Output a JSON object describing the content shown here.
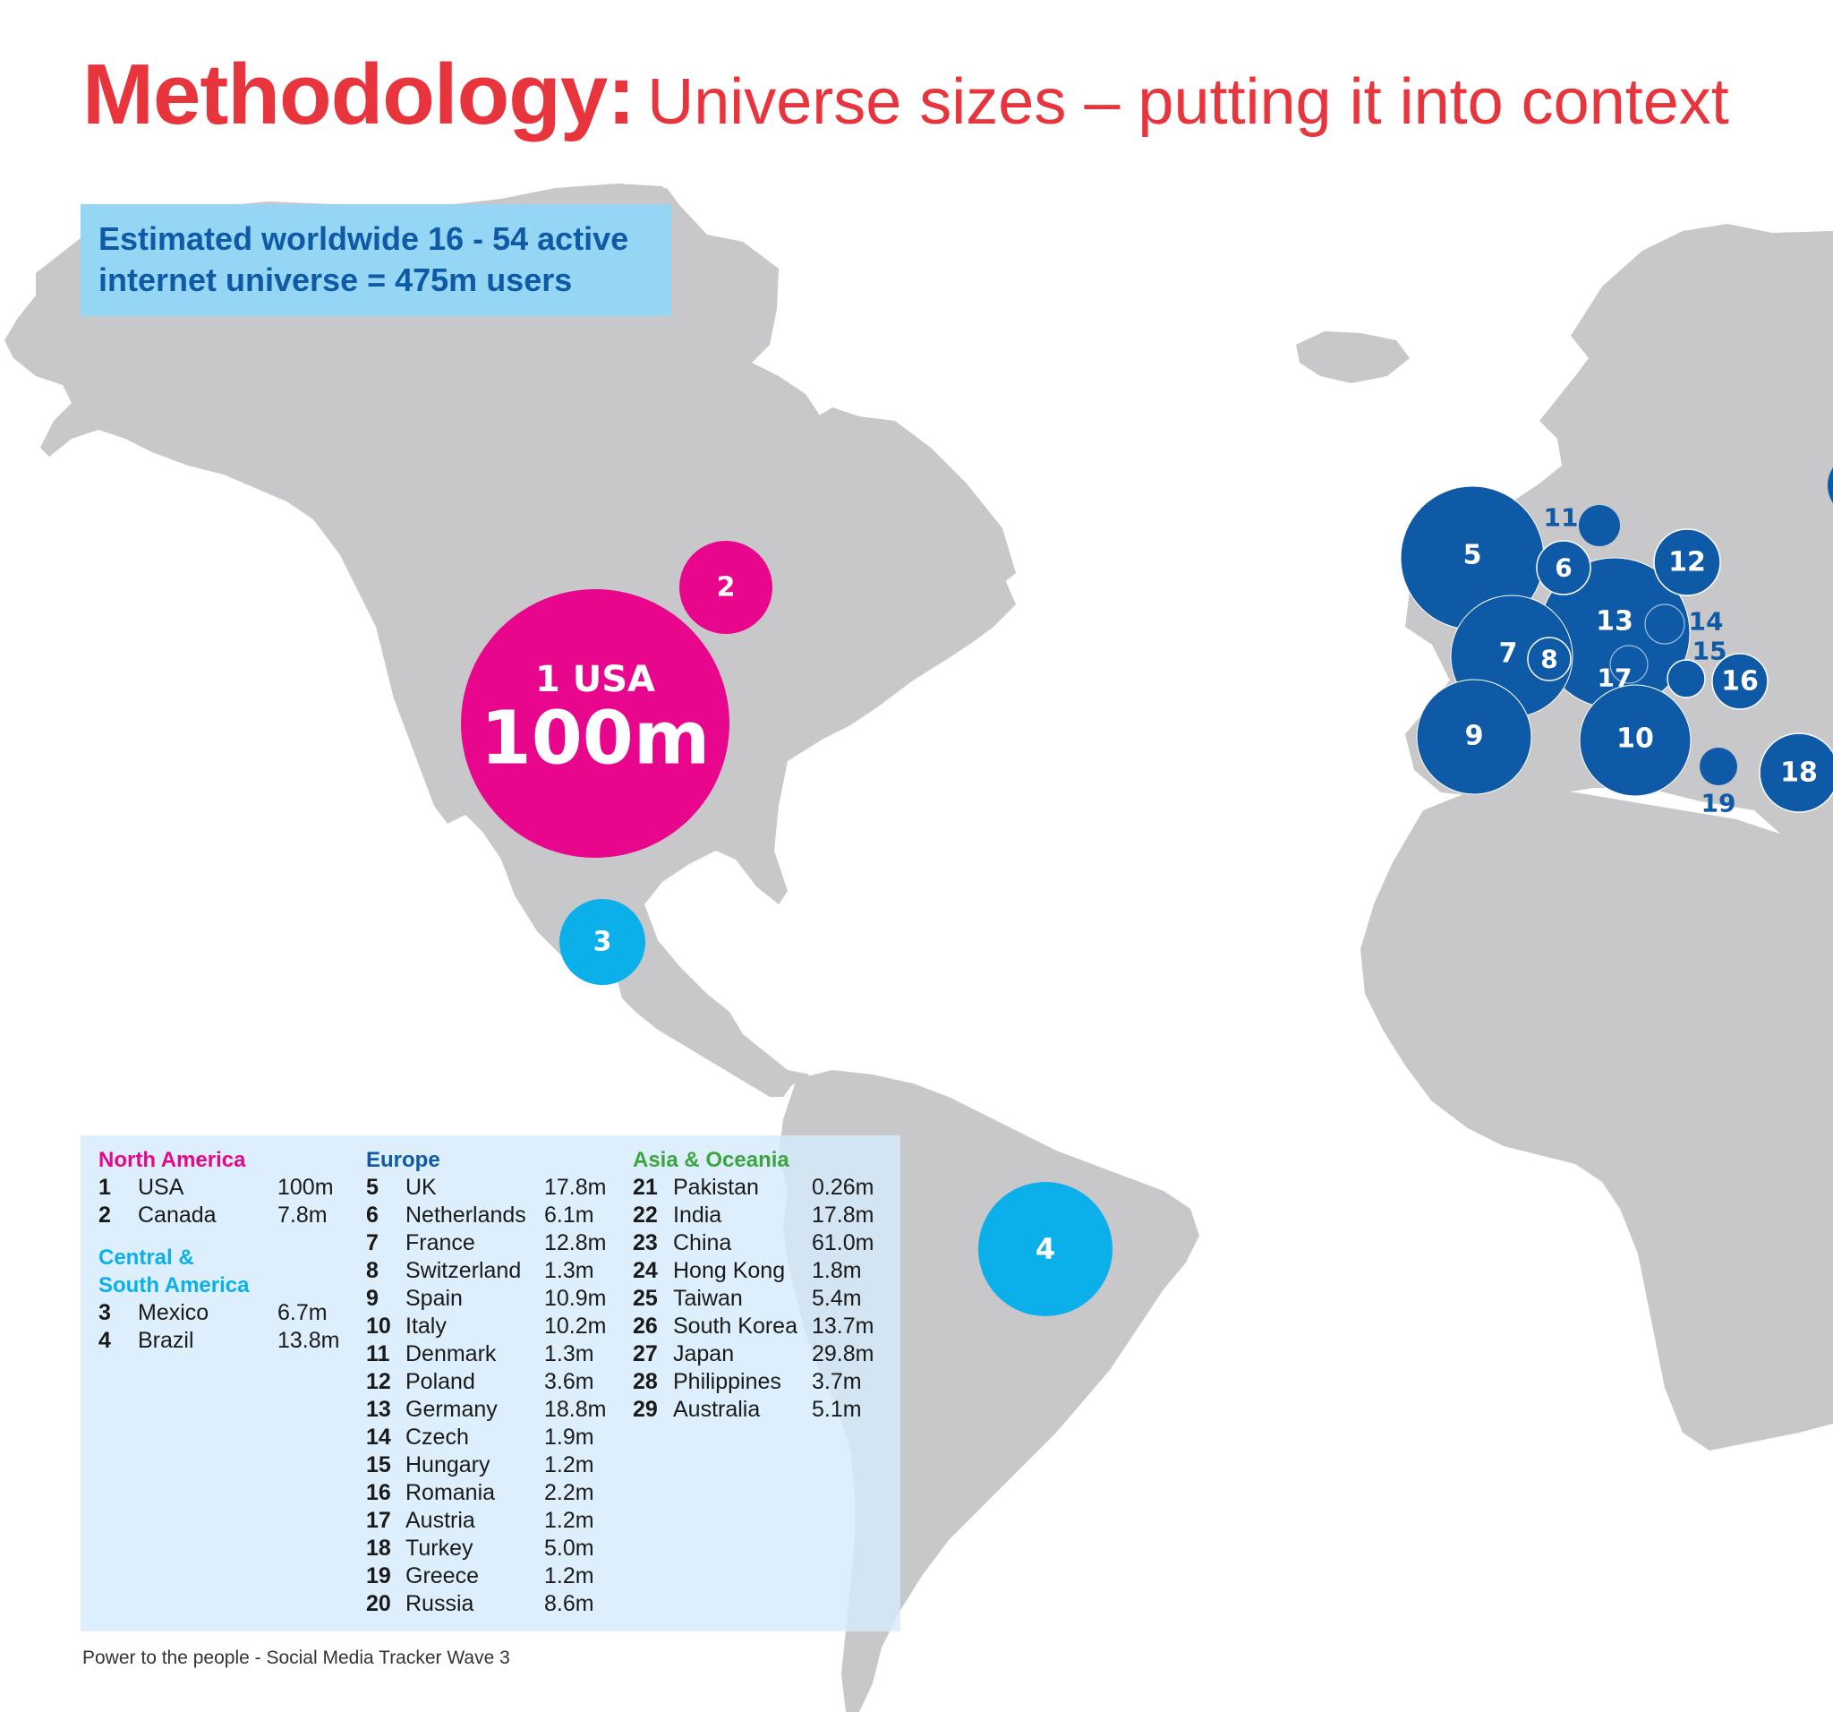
{
  "title": {
    "bold": "Methodology:",
    "light": "Universe sizes – putting it into context"
  },
  "universe": {
    "line1": "Estimated worldwide 16 - 54 active",
    "line2": "internet universe = 475m users"
  },
  "colors": {
    "title": "#e8343c",
    "north_america": "#e8078c",
    "central_south_america": "#0bb0ea",
    "europe": "#0e5aa7",
    "asia_oceania": "#3aa63f",
    "land": "#c8c8cb"
  },
  "map": {
    "usa_label": "1 USA",
    "usa_value": "100m",
    "bubbles": [
      {
        "id": "1",
        "region": "north_america",
        "value_m": 100
      },
      {
        "id": "2",
        "region": "north_america",
        "value_m": 7.8
      },
      {
        "id": "3",
        "region": "central_south_america",
        "value_m": 6.7
      },
      {
        "id": "4",
        "region": "central_south_america",
        "value_m": 13.8
      },
      {
        "id": "5",
        "region": "europe",
        "value_m": 17.8
      },
      {
        "id": "6",
        "region": "europe",
        "value_m": 6.1
      },
      {
        "id": "7",
        "region": "europe",
        "value_m": 12.8
      },
      {
        "id": "8",
        "region": "europe",
        "value_m": 1.3
      },
      {
        "id": "9",
        "region": "europe",
        "value_m": 10.9
      },
      {
        "id": "10",
        "region": "europe",
        "value_m": 10.2
      },
      {
        "id": "11",
        "region": "europe",
        "value_m": 1.3
      },
      {
        "id": "12",
        "region": "europe",
        "value_m": 3.6
      },
      {
        "id": "13",
        "region": "europe",
        "value_m": 18.8
      },
      {
        "id": "14",
        "region": "europe",
        "value_m": 1.9
      },
      {
        "id": "15",
        "region": "europe",
        "value_m": 1.2
      },
      {
        "id": "16",
        "region": "europe",
        "value_m": 2.2
      },
      {
        "id": "17",
        "region": "europe",
        "value_m": 1.2
      },
      {
        "id": "18",
        "region": "europe",
        "value_m": 5.0
      },
      {
        "id": "19",
        "region": "europe",
        "value_m": 1.2
      }
    ]
  },
  "legend": {
    "north_america": {
      "title": "North America",
      "rows": [
        {
          "num": "1",
          "name": "USA",
          "value": "100m"
        },
        {
          "num": "2",
          "name": "Canada",
          "value": "7.8m"
        }
      ]
    },
    "central_south_america": {
      "title_line1": "Central &",
      "title_line2": "South America",
      "rows": [
        {
          "num": "3",
          "name": "Mexico",
          "value": "6.7m"
        },
        {
          "num": "4",
          "name": "Brazil",
          "value": "13.8m"
        }
      ]
    },
    "europe": {
      "title": "Europe",
      "rows": [
        {
          "num": "5",
          "name": "UK",
          "value": "17.8m"
        },
        {
          "num": "6",
          "name": "Netherlands",
          "value": "6.1m"
        },
        {
          "num": "7",
          "name": "France",
          "value": "12.8m"
        },
        {
          "num": "8",
          "name": "Switzerland",
          "value": "1.3m"
        },
        {
          "num": "9",
          "name": "Spain",
          "value": "10.9m"
        },
        {
          "num": "10",
          "name": "Italy",
          "value": "10.2m"
        },
        {
          "num": "11",
          "name": "Denmark",
          "value": "1.3m"
        },
        {
          "num": "12",
          "name": "Poland",
          "value": "3.6m"
        },
        {
          "num": "13",
          "name": "Germany",
          "value": "18.8m"
        },
        {
          "num": "14",
          "name": "Czech",
          "value": "1.9m"
        },
        {
          "num": "15",
          "name": "Hungary",
          "value": "1.2m"
        },
        {
          "num": "16",
          "name": "Romania",
          "value": "2.2m"
        },
        {
          "num": "17",
          "name": "Austria",
          "value": "1.2m"
        },
        {
          "num": "18",
          "name": "Turkey",
          "value": "5.0m"
        },
        {
          "num": "19",
          "name": "Greece",
          "value": "1.2m"
        },
        {
          "num": "20",
          "name": "Russia",
          "value": "8.6m"
        }
      ]
    },
    "asia_oceania": {
      "title": "Asia & Oceania",
      "rows": [
        {
          "num": "21",
          "name": "Pakistan",
          "value": "0.26m"
        },
        {
          "num": "22",
          "name": "India",
          "value": "17.8m"
        },
        {
          "num": "23",
          "name": "China",
          "value": "61.0m"
        },
        {
          "num": "24",
          "name": "Hong Kong",
          "value": "1.8m"
        },
        {
          "num": "25",
          "name": "Taiwan",
          "value": "5.4m"
        },
        {
          "num": "26",
          "name": "South Korea",
          "value": "13.7m"
        },
        {
          "num": "27",
          "name": "Japan",
          "value": "29.8m"
        },
        {
          "num": "28",
          "name": "Philippines",
          "value": "3.7m"
        },
        {
          "num": "29",
          "name": "Australia",
          "value": "5.1m"
        }
      ]
    }
  },
  "footer": "Power to the people - Social Media Tracker Wave 3"
}
